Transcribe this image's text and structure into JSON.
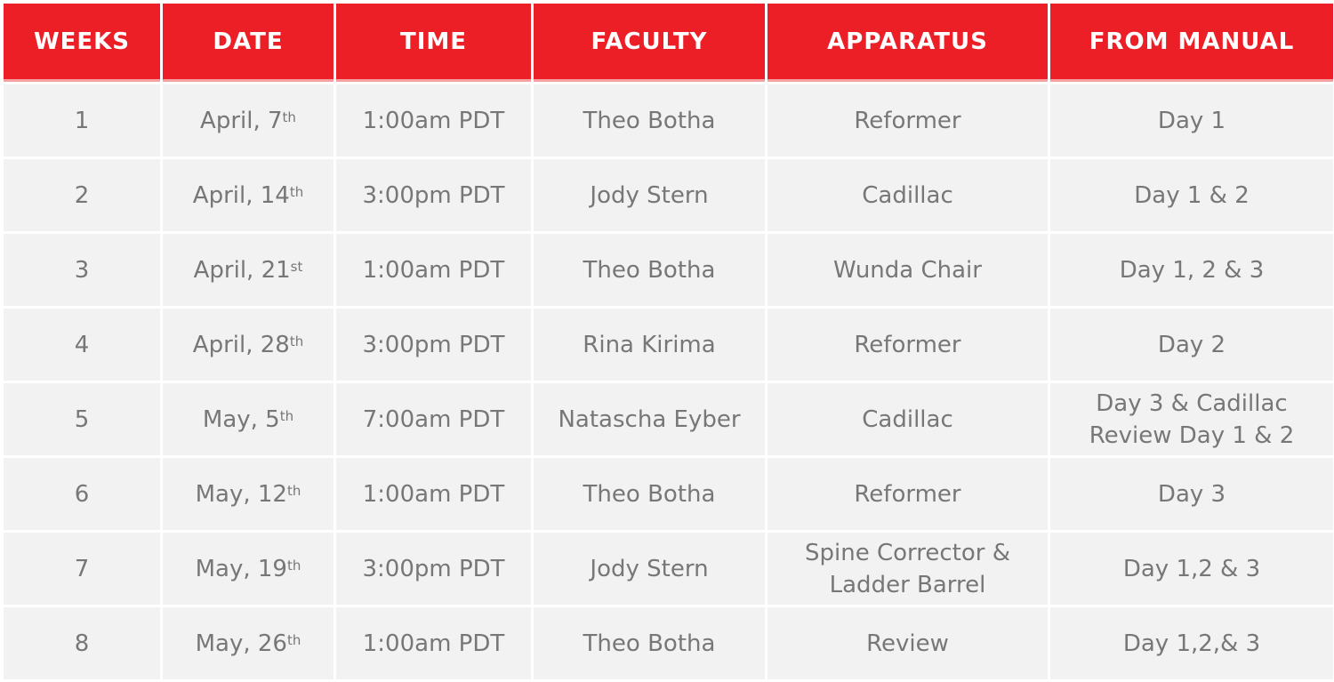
{
  "colors": {
    "header_bg": "#ec1f27",
    "header_text": "#ffffff",
    "cell_bg": "#f2f2f2",
    "cell_text": "#777777"
  },
  "headers": [
    "WEEKS",
    "DATE",
    "TIME",
    "FACULTY",
    "APPARATUS",
    "FROM MANUAL"
  ],
  "rows": [
    {
      "week": "1",
      "date": "April, 7",
      "date_sup": "th",
      "time": "1:00am PDT",
      "faculty": "Theo Botha",
      "apparatus": [
        "Reformer"
      ],
      "manual": [
        "Day 1"
      ]
    },
    {
      "week": "2",
      "date": "April, 14",
      "date_sup": "th",
      "time": "3:00pm PDT",
      "faculty": "Jody Stern",
      "apparatus": [
        "Cadillac"
      ],
      "manual": [
        "Day 1 & 2"
      ]
    },
    {
      "week": "3",
      "date": "April, 21",
      "date_sup": "st",
      "time": "1:00am PDT",
      "faculty": "Theo Botha",
      "apparatus": [
        "Wunda Chair"
      ],
      "manual": [
        "Day 1, 2 & 3"
      ]
    },
    {
      "week": "4",
      "date": "April, 28",
      "date_sup": "th",
      "time": "3:00pm PDT",
      "faculty": "Rina Kirima",
      "apparatus": [
        "Reformer"
      ],
      "manual": [
        "Day 2"
      ]
    },
    {
      "week": "5",
      "date": "May, 5",
      "date_sup": "th",
      "time": "7:00am PDT",
      "faculty": "Natascha Eyber",
      "apparatus": [
        "Cadillac"
      ],
      "manual": [
        "Day 3 & Cadillac",
        "Review Day 1 & 2"
      ]
    },
    {
      "week": "6",
      "date": "May, 12",
      "date_sup": "th",
      "time": "1:00am PDT",
      "faculty": "Theo Botha",
      "apparatus": [
        "Reformer"
      ],
      "manual": [
        "Day 3"
      ]
    },
    {
      "week": "7",
      "date": "May, 19",
      "date_sup": "th",
      "time": "3:00pm PDT",
      "faculty": "Jody Stern",
      "apparatus": [
        "Spine Corrector &",
        "Ladder Barrel"
      ],
      "manual": [
        "Day 1,2 & 3"
      ]
    },
    {
      "week": "8",
      "date": "May, 26",
      "date_sup": "th",
      "time": "1:00am PDT",
      "faculty": "Theo Botha",
      "apparatus": [
        "Review"
      ],
      "manual": [
        "Day 1,2,& 3"
      ]
    }
  ]
}
